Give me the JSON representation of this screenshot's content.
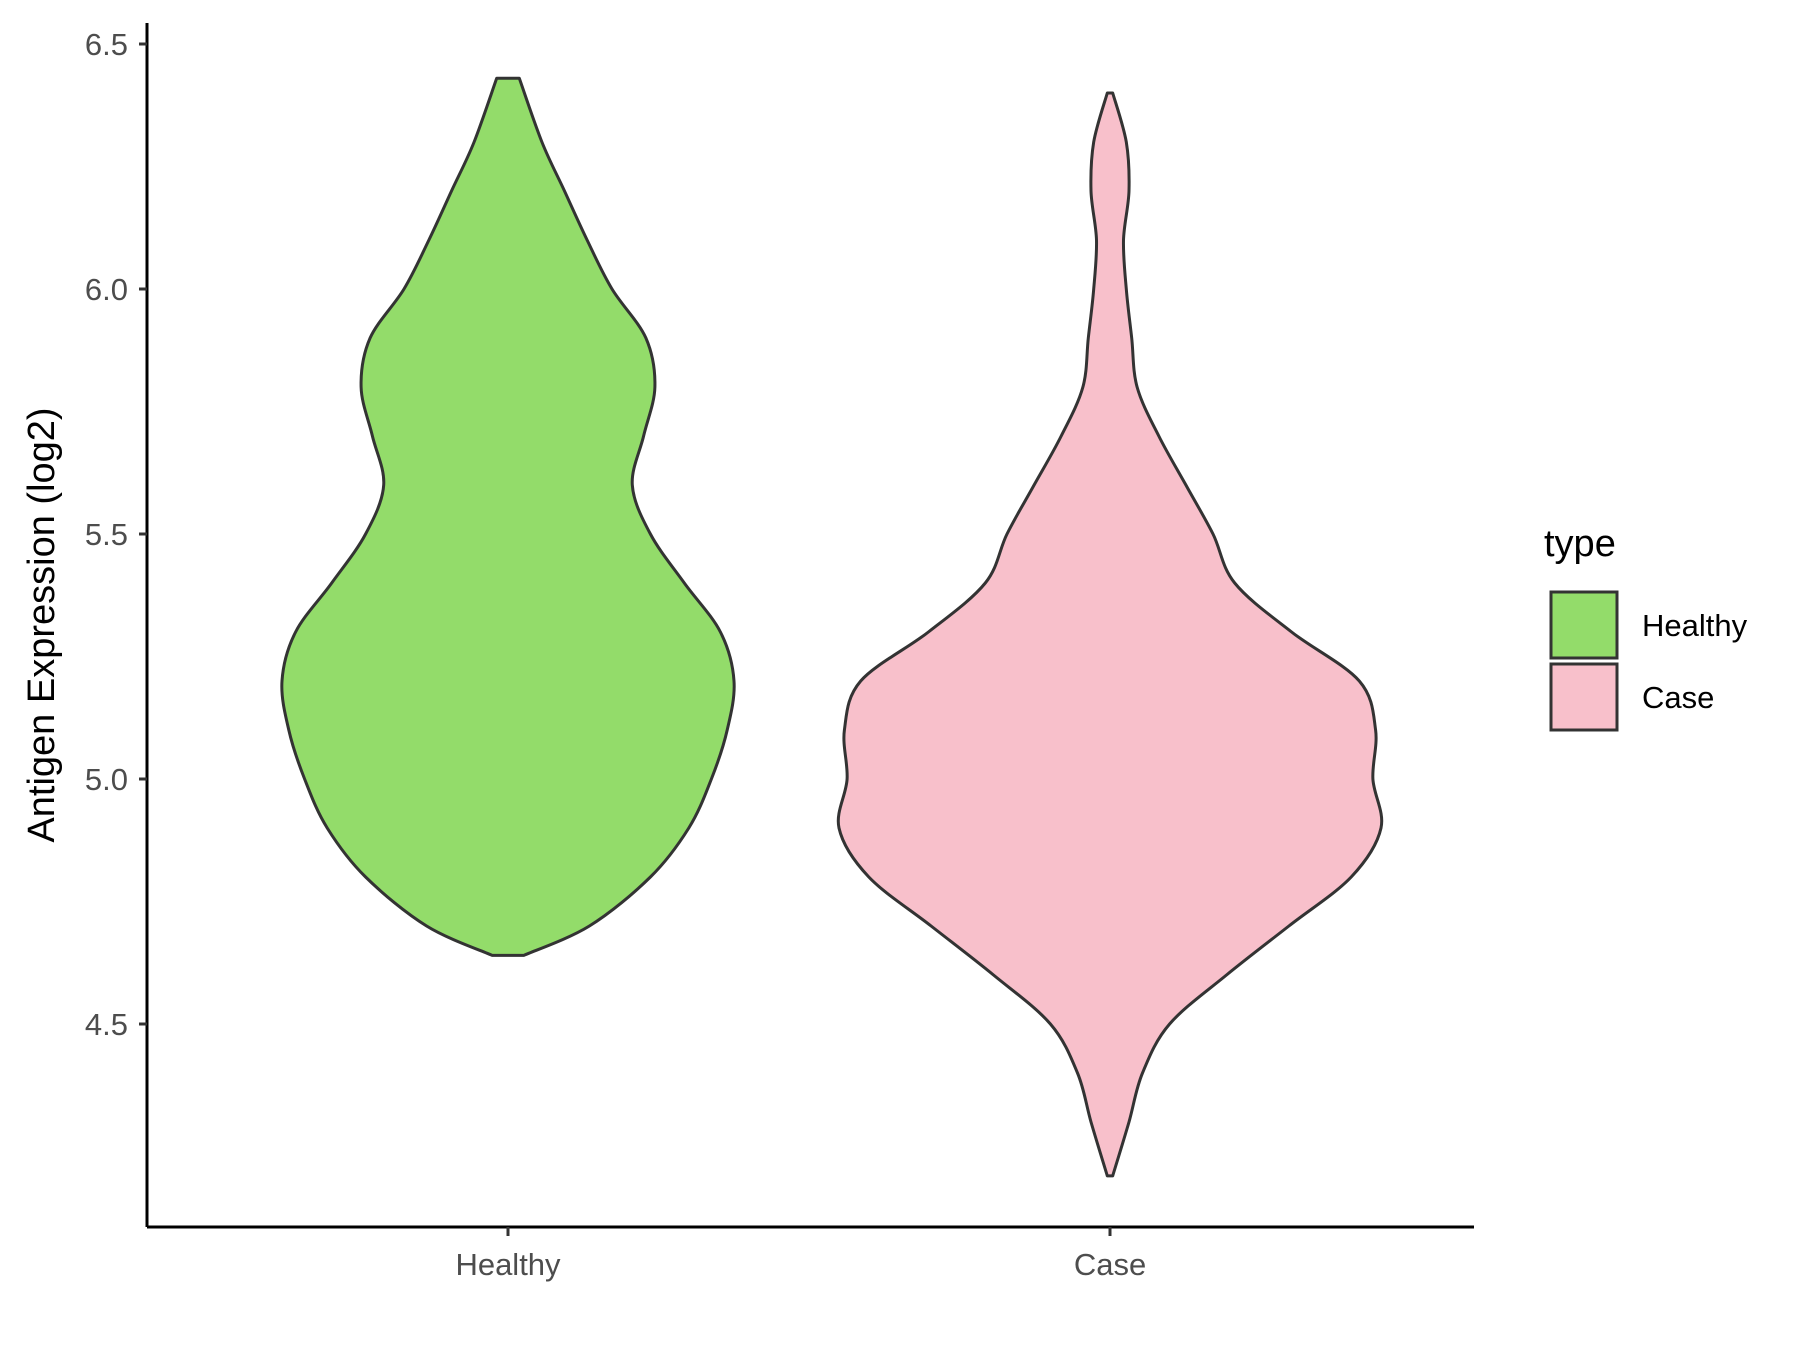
{
  "chart_data": {
    "type": "violin",
    "title": "",
    "xlabel": "",
    "ylabel": "Antigen Expression (log2)",
    "ylim": [
      4.1,
      6.53
    ],
    "yticks": [
      "4.5",
      "5.0",
      "5.5",
      "6.0",
      "6.5"
    ],
    "categories": [
      "Healthy",
      "Case"
    ],
    "series": [
      {
        "name": "Healthy",
        "color": "#93dc6a",
        "min": 4.64,
        "max": 6.43,
        "density": [
          [
            4.64,
            0.07
          ],
          [
            4.7,
            0.36
          ],
          [
            4.8,
            0.63
          ],
          [
            4.9,
            0.8
          ],
          [
            5.0,
            0.9
          ],
          [
            5.1,
            0.97
          ],
          [
            5.2,
            1.0
          ],
          [
            5.3,
            0.94
          ],
          [
            5.4,
            0.78
          ],
          [
            5.5,
            0.63
          ],
          [
            5.6,
            0.55
          ],
          [
            5.7,
            0.6
          ],
          [
            5.8,
            0.65
          ],
          [
            5.9,
            0.61
          ],
          [
            6.0,
            0.46
          ],
          [
            6.1,
            0.35
          ],
          [
            6.2,
            0.25
          ],
          [
            6.3,
            0.15
          ],
          [
            6.43,
            0.05
          ]
        ]
      },
      {
        "name": "Case",
        "color": "#f8c0cb",
        "min": 4.19,
        "max": 6.4,
        "density": [
          [
            4.19,
            0.01
          ],
          [
            4.3,
            0.07
          ],
          [
            4.4,
            0.12
          ],
          [
            4.5,
            0.22
          ],
          [
            4.6,
            0.43
          ],
          [
            4.7,
            0.66
          ],
          [
            4.8,
            0.89
          ],
          [
            4.9,
            1.0
          ],
          [
            5.0,
            0.97
          ],
          [
            5.1,
            0.98
          ],
          [
            5.2,
            0.92
          ],
          [
            5.3,
            0.67
          ],
          [
            5.4,
            0.46
          ],
          [
            5.5,
            0.38
          ],
          [
            5.6,
            0.28
          ],
          [
            5.7,
            0.18
          ],
          [
            5.8,
            0.1
          ],
          [
            5.9,
            0.08
          ],
          [
            6.0,
            0.06
          ],
          [
            6.1,
            0.05
          ],
          [
            6.2,
            0.07
          ],
          [
            6.3,
            0.06
          ],
          [
            6.4,
            0.01
          ]
        ]
      }
    ],
    "legend": {
      "title": "type",
      "position": "right"
    },
    "grid": false
  }
}
